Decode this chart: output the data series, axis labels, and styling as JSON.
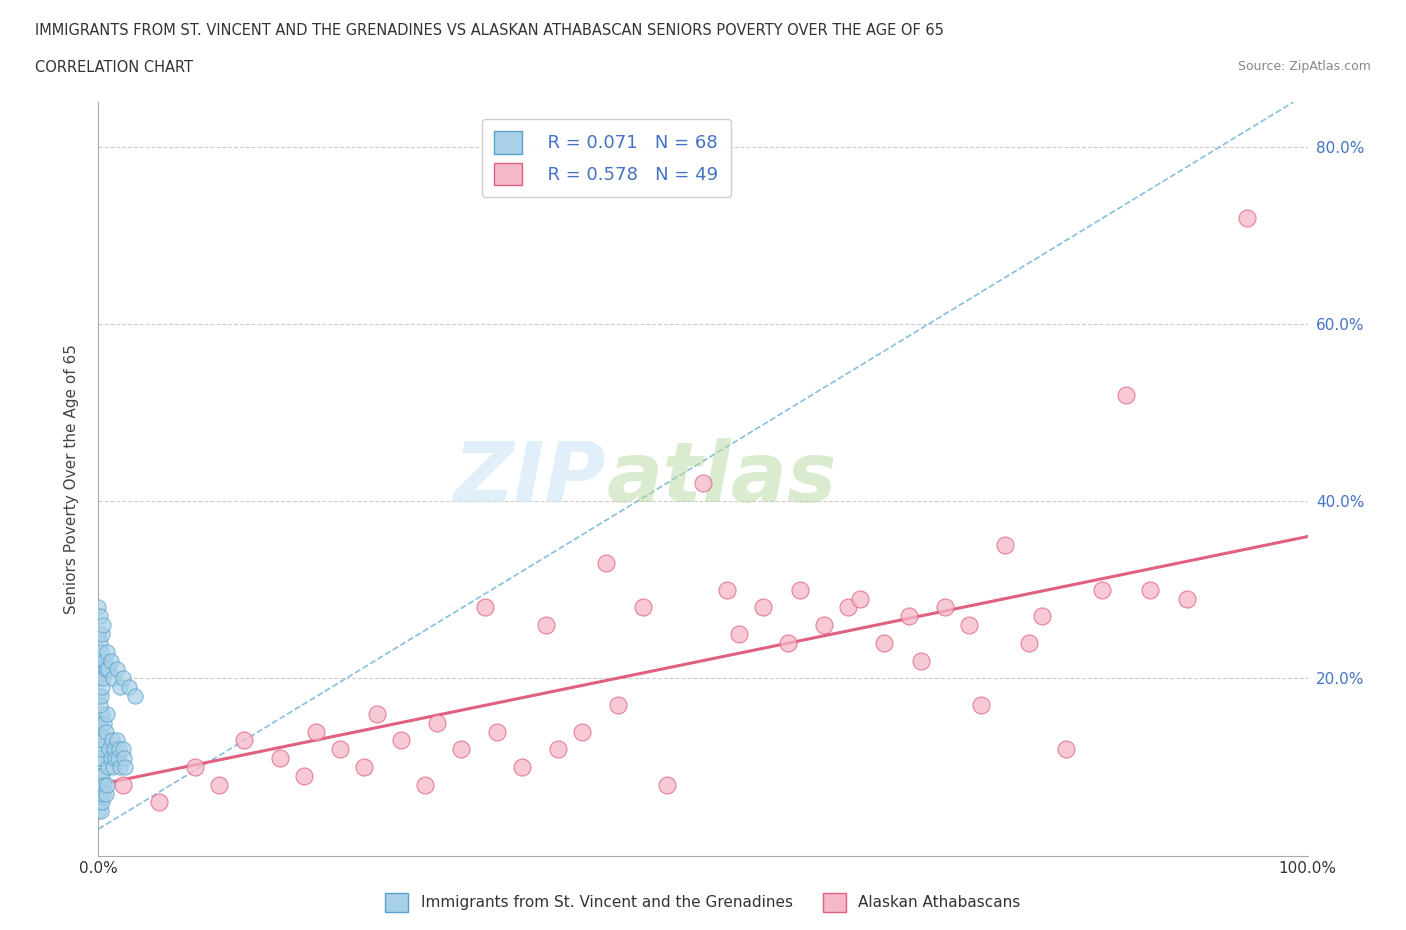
{
  "title": "IMMIGRANTS FROM ST. VINCENT AND THE GRENADINES VS ALASKAN ATHABASCAN SENIORS POVERTY OVER THE AGE OF 65",
  "subtitle": "CORRELATION CHART",
  "source": "Source: ZipAtlas.com",
  "ylabel": "Seniors Poverty Over the Age of 65",
  "color_blue_fill": "#a8d1e8",
  "color_blue_edge": "#5aa0c8",
  "color_pink_fill": "#f4b8c8",
  "color_pink_edge": "#e06080",
  "color_line_blue": "#7ab8d8",
  "color_line_pink": "#e06080",
  "blue_r": "R = 0.071",
  "blue_n": "N = 68",
  "pink_r": "R = 0.578",
  "pink_n": "N = 49",
  "s1_x": [
    0.0,
    0.0,
    0.0,
    0.0,
    0.0,
    0.1,
    0.1,
    0.1,
    0.1,
    0.1,
    0.1,
    0.1,
    0.2,
    0.2,
    0.2,
    0.2,
    0.3,
    0.3,
    0.3,
    0.3,
    0.4,
    0.4,
    0.5,
    0.5,
    0.6,
    0.6,
    0.7,
    0.7,
    0.8,
    0.9,
    1.0,
    1.1,
    1.2,
    1.3,
    1.4,
    1.5,
    1.6,
    1.7,
    1.8,
    2.0,
    2.1,
    2.2,
    0.0,
    0.0,
    0.0,
    0.0,
    0.0,
    0.1,
    0.1,
    0.1,
    0.1,
    0.2,
    0.2,
    0.3,
    0.3,
    0.4,
    0.4,
    0.5,
    0.6,
    0.7,
    0.8,
    1.0,
    1.2,
    1.5,
    1.8,
    2.0,
    2.5,
    3.0
  ],
  "s1_y": [
    5.0,
    7.0,
    8.0,
    10.0,
    12.0,
    6.0,
    7.0,
    8.0,
    9.0,
    11.0,
    13.0,
    15.0,
    5.0,
    8.0,
    11.0,
    14.0,
    6.0,
    9.0,
    12.0,
    16.0,
    7.0,
    13.0,
    8.0,
    15.0,
    7.0,
    14.0,
    8.0,
    16.0,
    10.0,
    12.0,
    11.0,
    13.0,
    10.0,
    12.0,
    11.0,
    13.0,
    11.0,
    12.0,
    10.0,
    12.0,
    11.0,
    10.0,
    18.0,
    20.0,
    22.0,
    25.0,
    28.0,
    17.0,
    21.0,
    24.0,
    27.0,
    18.0,
    23.0,
    19.0,
    25.0,
    20.0,
    26.0,
    22.0,
    21.0,
    23.0,
    21.0,
    22.0,
    20.0,
    21.0,
    19.0,
    20.0,
    19.0,
    18.0
  ],
  "s2_x": [
    2.0,
    5.0,
    8.0,
    10.0,
    12.0,
    15.0,
    17.0,
    18.0,
    20.0,
    22.0,
    23.0,
    25.0,
    27.0,
    28.0,
    30.0,
    32.0,
    33.0,
    35.0,
    37.0,
    38.0,
    40.0,
    42.0,
    43.0,
    45.0,
    47.0,
    50.0,
    52.0,
    53.0,
    55.0,
    57.0,
    58.0,
    60.0,
    62.0,
    63.0,
    65.0,
    67.0,
    68.0,
    70.0,
    72.0,
    73.0,
    75.0,
    77.0,
    78.0,
    80.0,
    83.0,
    85.0,
    87.0,
    90.0,
    95.0
  ],
  "s2_y": [
    8.0,
    6.0,
    10.0,
    8.0,
    13.0,
    11.0,
    9.0,
    14.0,
    12.0,
    10.0,
    16.0,
    13.0,
    8.0,
    15.0,
    12.0,
    28.0,
    14.0,
    10.0,
    26.0,
    12.0,
    14.0,
    33.0,
    17.0,
    28.0,
    8.0,
    42.0,
    30.0,
    25.0,
    28.0,
    24.0,
    30.0,
    26.0,
    28.0,
    29.0,
    24.0,
    27.0,
    22.0,
    28.0,
    26.0,
    17.0,
    35.0,
    24.0,
    27.0,
    12.0,
    30.0,
    52.0,
    30.0,
    29.0,
    72.0
  ]
}
